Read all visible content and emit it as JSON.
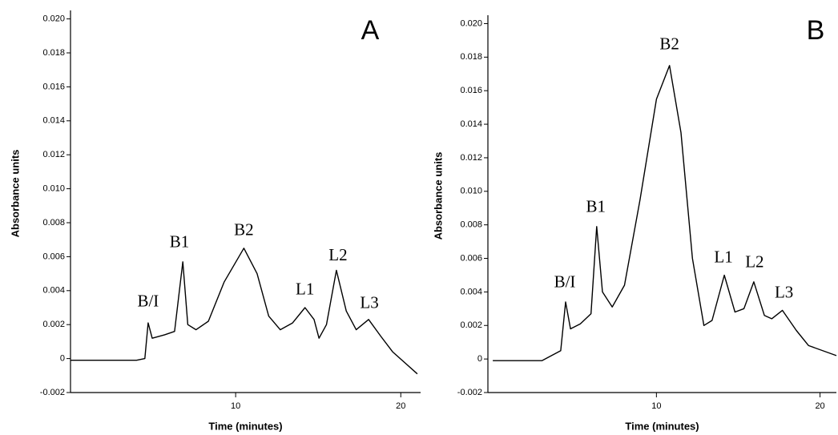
{
  "chart_data": [
    {
      "type": "line",
      "panel_label": "A",
      "xlabel": "Time (minutes)",
      "ylabel": "Absorbance units",
      "color": "#000000",
      "xlim": [
        0,
        21.2
      ],
      "xticks": [
        10,
        20
      ],
      "ylim": [
        -0.002,
        0.0205
      ],
      "yticks": [
        -0.002,
        0,
        0.002,
        0.004,
        0.006,
        0.008,
        {
          "value": 0.01,
          "label": "0.010"
        },
        0.012,
        0.014,
        0.016,
        0.018,
        {
          "value": 0.02,
          "label": "0.020"
        }
      ],
      "x": [
        0,
        1,
        2,
        3,
        4,
        4.5,
        4.7,
        4.95,
        5.7,
        6.3,
        6.8,
        7.1,
        7.6,
        8.35,
        9.3,
        10.5,
        11.3,
        12.0,
        12.7,
        13.45,
        14.2,
        14.75,
        15.05,
        15.5,
        16.1,
        16.7,
        17.3,
        18.05,
        18.8,
        19.5,
        21.0
      ],
      "values": [
        -0.0001,
        -0.0001,
        -0.0001,
        -0.0001,
        -0.0001,
        0,
        0.0021,
        0.0012,
        0.0014,
        0.0016,
        0.0057,
        0.002,
        0.0017,
        0.0022,
        0.0045,
        0.0065,
        0.005,
        0.0025,
        0.0017,
        0.0021,
        0.003,
        0.0023,
        0.0012,
        0.002,
        0.0052,
        0.0028,
        0.0017,
        0.0023,
        0.0013,
        0.0004,
        -0.0009
      ],
      "annotations": [
        {
          "text": "B/I",
          "x": 4.7,
          "y": 0.0033
        },
        {
          "text": "B1",
          "x": 6.6,
          "y": 0.0068
        },
        {
          "text": "B2",
          "x": 10.5,
          "y": 0.0075
        },
        {
          "text": "L1",
          "x": 14.2,
          "y": 0.004
        },
        {
          "text": "L2",
          "x": 16.2,
          "y": 0.006
        },
        {
          "text": "L3",
          "x": 18.1,
          "y": 0.0032
        }
      ]
    },
    {
      "type": "line",
      "panel_label": "B",
      "xlabel": "Time (minutes)",
      "ylabel": "Absorbance units",
      "color": "#000000",
      "xlim": [
        -0.3,
        21
      ],
      "xticks": [
        10,
        20
      ],
      "ylim": [
        -0.002,
        0.0205
      ],
      "yticks": [
        -0.002,
        0,
        0.002,
        0.004,
        0.006,
        0.008,
        {
          "value": 0.01,
          "label": "0.010"
        },
        0.012,
        0.014,
        0.016,
        0.018,
        {
          "value": 0.02,
          "label": "0.020"
        }
      ],
      "x": [
        0,
        1,
        2,
        3,
        4.15,
        4.45,
        4.75,
        5.35,
        6.0,
        6.35,
        6.7,
        7.3,
        8.05,
        9.0,
        10.0,
        10.8,
        11.5,
        12.2,
        12.9,
        13.4,
        14.15,
        14.8,
        15.35,
        15.95,
        16.6,
        17.05,
        17.7,
        18.55,
        19.3,
        21.0
      ],
      "values": [
        -0.0001,
        -0.0001,
        -0.0001,
        -0.0001,
        0.0005,
        0.0034,
        0.0018,
        0.0021,
        0.0027,
        0.0079,
        0.004,
        0.0031,
        0.0044,
        0.0095,
        0.0155,
        0.0175,
        0.0135,
        0.006,
        0.002,
        0.0023,
        0.005,
        0.0028,
        0.003,
        0.0046,
        0.0026,
        0.0024,
        0.0029,
        0.0017,
        0.0008,
        0.0002
      ],
      "annotations": [
        {
          "text": "B/I",
          "x": 4.4,
          "y": 0.0045
        },
        {
          "text": "B1",
          "x": 6.3,
          "y": 0.009
        },
        {
          "text": "B2",
          "x": 10.8,
          "y": 0.0187
        },
        {
          "text": "L1",
          "x": 14.1,
          "y": 0.006
        },
        {
          "text": "L2",
          "x": 16.0,
          "y": 0.0057
        },
        {
          "text": "L3",
          "x": 17.8,
          "y": 0.0039
        }
      ]
    }
  ]
}
